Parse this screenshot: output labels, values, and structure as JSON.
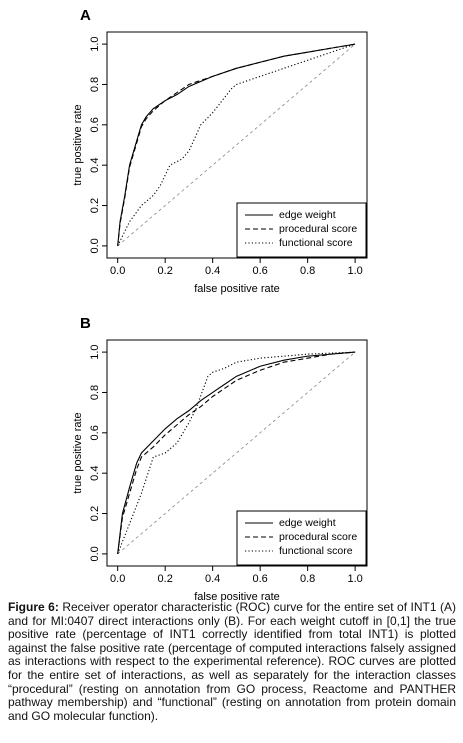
{
  "chart_data": [
    {
      "type": "line",
      "title": "A",
      "xlabel": "false positive rate",
      "ylabel": "true positive rate",
      "xlim": [
        -0.045,
        1.05
      ],
      "ylim": [
        -0.06,
        1.06
      ],
      "xticks": [
        {
          "value": 0,
          "label": "0.0"
        },
        0.2,
        0.4,
        0.6,
        0.8,
        {
          "value": 1,
          "label": "1.0"
        }
      ],
      "yticks": [
        {
          "value": 0,
          "label": "0.0"
        },
        0.2,
        0.4,
        0.6,
        0.8,
        {
          "value": 1,
          "label": "1.0"
        }
      ],
      "diagonal": true,
      "legend": "lower right",
      "series": [
        {
          "name": "edge weight",
          "color": "#000000",
          "dash": "solid",
          "x": [
            0,
            0.01,
            0.03,
            0.05,
            0.08,
            0.1,
            0.12,
            0.15,
            0.2,
            0.25,
            0.3,
            0.4,
            0.5,
            0.6,
            0.7,
            0.8,
            0.9,
            1.0
          ],
          "values": [
            0,
            0.12,
            0.25,
            0.4,
            0.52,
            0.6,
            0.64,
            0.68,
            0.72,
            0.75,
            0.79,
            0.84,
            0.88,
            0.91,
            0.94,
            0.96,
            0.98,
            1.0
          ]
        },
        {
          "name": "procedural score",
          "color": "#000000",
          "dash": "dashed",
          "x": [
            0,
            0.01,
            0.03,
            0.05,
            0.08,
            0.1,
            0.12,
            0.15,
            0.2,
            0.25,
            0.3,
            0.4,
            0.5,
            0.6,
            0.7,
            0.8,
            0.9,
            1.0
          ],
          "values": [
            0,
            0.11,
            0.24,
            0.39,
            0.51,
            0.59,
            0.63,
            0.67,
            0.72,
            0.76,
            0.8,
            0.84,
            0.88,
            0.91,
            0.94,
            0.96,
            0.98,
            1.0
          ]
        },
        {
          "name": "functional score",
          "color": "#000000",
          "dash": "dotted",
          "x": [
            0,
            0.05,
            0.1,
            0.15,
            0.18,
            0.22,
            0.27,
            0.3,
            0.35,
            0.4,
            0.48,
            0.5,
            0.6,
            0.7,
            0.8,
            0.9,
            1.0
          ],
          "values": [
            0,
            0.12,
            0.2,
            0.25,
            0.3,
            0.4,
            0.43,
            0.47,
            0.6,
            0.66,
            0.78,
            0.8,
            0.84,
            0.88,
            0.92,
            0.96,
            1.0
          ]
        }
      ]
    },
    {
      "type": "line",
      "title": "B",
      "xlabel": "false positive rate",
      "ylabel": "true positive rate",
      "xlim": [
        -0.045,
        1.05
      ],
      "ylim": [
        -0.06,
        1.06
      ],
      "xticks": [
        {
          "value": 0,
          "label": "0.0"
        },
        0.2,
        0.4,
        0.6,
        0.8,
        {
          "value": 1,
          "label": "1.0"
        }
      ],
      "yticks": [
        {
          "value": 0,
          "label": "0.0"
        },
        0.2,
        0.4,
        0.6,
        0.8,
        {
          "value": 1,
          "label": "1.0"
        }
      ],
      "diagonal": true,
      "legend": "lower right",
      "series": [
        {
          "name": "edge weight",
          "color": "#000000",
          "dash": "solid",
          "x": [
            0,
            0.02,
            0.05,
            0.08,
            0.1,
            0.15,
            0.2,
            0.25,
            0.3,
            0.35,
            0.4,
            0.45,
            0.5,
            0.6,
            0.7,
            0.8,
            0.9,
            1.0
          ],
          "values": [
            0,
            0.2,
            0.33,
            0.45,
            0.5,
            0.56,
            0.62,
            0.67,
            0.71,
            0.76,
            0.8,
            0.84,
            0.88,
            0.93,
            0.96,
            0.98,
            0.99,
            1.0
          ]
        },
        {
          "name": "procedural score",
          "color": "#000000",
          "dash": "dashed",
          "x": [
            0,
            0.02,
            0.05,
            0.08,
            0.1,
            0.15,
            0.2,
            0.25,
            0.3,
            0.35,
            0.4,
            0.45,
            0.5,
            0.6,
            0.7,
            0.8,
            0.9,
            1.0
          ],
          "values": [
            0,
            0.18,
            0.3,
            0.42,
            0.48,
            0.53,
            0.59,
            0.64,
            0.69,
            0.73,
            0.78,
            0.82,
            0.86,
            0.91,
            0.95,
            0.97,
            0.99,
            1.0
          ]
        },
        {
          "name": "functional score",
          "color": "#000000",
          "dash": "dotted",
          "x": [
            0,
            0.05,
            0.1,
            0.15,
            0.2,
            0.25,
            0.3,
            0.33,
            0.38,
            0.4,
            0.45,
            0.5,
            0.6,
            0.7,
            0.8,
            0.9,
            1.0
          ],
          "values": [
            0,
            0.15,
            0.3,
            0.48,
            0.5,
            0.55,
            0.65,
            0.72,
            0.88,
            0.9,
            0.92,
            0.95,
            0.97,
            0.98,
            0.99,
            0.995,
            1.0
          ]
        }
      ]
    }
  ],
  "caption": {
    "label": "Figure 6:",
    "text": "Receiver operator characteristic (ROC) curve for the entire set of INT1 (A) and for MI:0407 direct interactions only (B). For each weight cutoff in [0,1] the true positive rate (percentage of INT1 correctly identified from total INT1) is plotted against the false positive rate (percentage of computed interactions falsely assigned as interactions with respect to the experimental reference). ROC curves are plotted for the entire set of interactions, as well as separately for the interaction classes “procedural” (resting on annotation from GO process, Reactome and PANTHER pathway membership) and “functional” (resting on annotation from protein domain and GO molecular function)."
  }
}
